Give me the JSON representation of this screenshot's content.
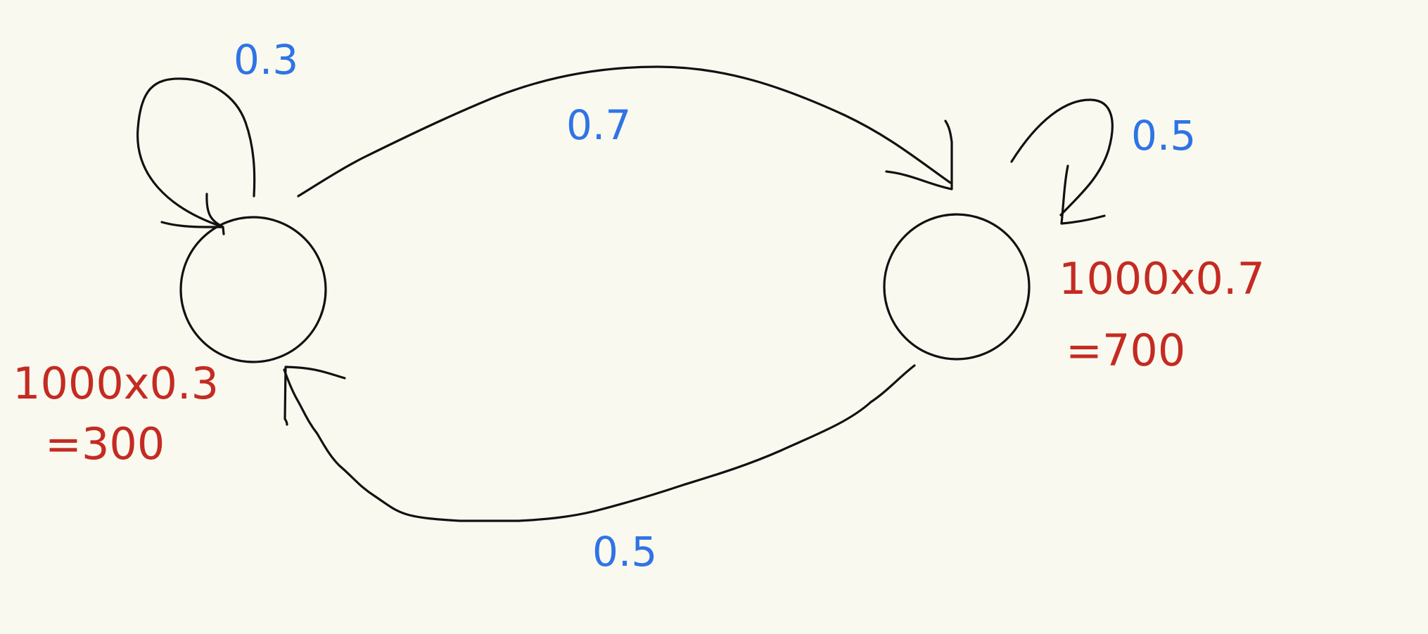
{
  "colors": {
    "background": "#faf9ef",
    "ink": "#111111",
    "probability": "#2f74e6",
    "calculation": "#c42b22"
  },
  "states": [
    {
      "id": "left-state"
    },
    {
      "id": "right-state"
    }
  ],
  "transitions": {
    "left_self_loop": "0.3",
    "left_to_right": "0.7",
    "right_self_loop": "0.5",
    "right_to_left": "0.5"
  },
  "calculations": {
    "left": {
      "line1": "1000x0.3",
      "line2": "=300"
    },
    "right": {
      "line1": "1000x0.7",
      "line2": "=700"
    }
  }
}
